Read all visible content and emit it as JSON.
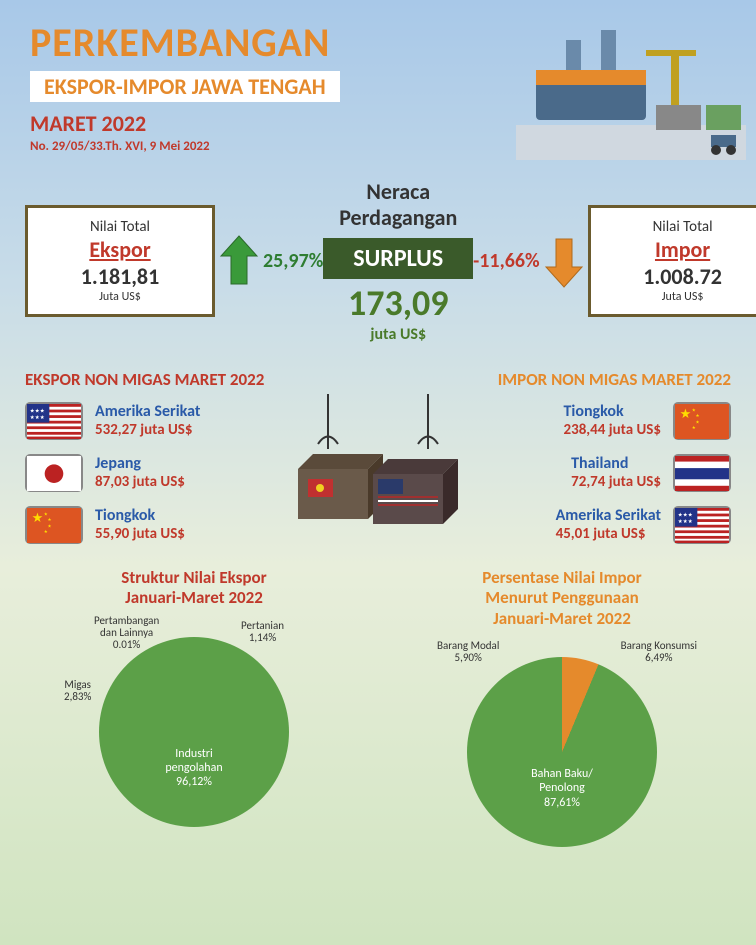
{
  "header": {
    "title_main": "PERKEMBANGAN",
    "title_sub": "EKSPOR-IMPOR JAWA TENGAH",
    "period": "MARET 2022",
    "pub_no": "No. 29/05/33.Th. XVI, 9 Mei 2022"
  },
  "export_box": {
    "label": "Nilai Total",
    "name": "Ekspor",
    "value": "1.181,81",
    "unit": "Juta US$",
    "pct": "25,97%",
    "direction": "up",
    "arrow_color": "#3a9a3a"
  },
  "import_box": {
    "label": "Nilai Total",
    "name": "Impor",
    "value": "1.008.72",
    "unit": "Juta US$",
    "pct": "-11,66%",
    "direction": "down",
    "arrow_color": "#e58a2c"
  },
  "balance": {
    "title1": "Neraca",
    "title2": "Perdagangan",
    "surplus_label": "SURPLUS",
    "value": "173,09",
    "unit": "juta US$"
  },
  "ekspor_non_migas": {
    "title": "EKSPOR NON MIGAS MARET 2022",
    "rows": [
      {
        "country": "Amerika Serikat",
        "value": "532,27 juta US$",
        "flag": "us"
      },
      {
        "country": "Jepang",
        "value": "87,03 juta US$",
        "flag": "jp"
      },
      {
        "country": "Tiongkok",
        "value": "55,90 juta US$",
        "flag": "cn"
      }
    ]
  },
  "impor_non_migas": {
    "title": "IMPOR NON MIGAS MARET 2022",
    "rows": [
      {
        "country": "Tiongkok",
        "value": "238,44 juta US$",
        "flag": "cn"
      },
      {
        "country": "Thailand",
        "value": "72,74 juta US$",
        "flag": "th"
      },
      {
        "country": "Amerika Serikat",
        "value": "45,01 juta US$",
        "flag": "us"
      }
    ]
  },
  "pie_ekspor": {
    "title": "Struktur Nilai Ekspor\nJanuari-Maret 2022",
    "slices": [
      {
        "label": "Industri pengolahan",
        "pct": 96.12,
        "color": "#5ca048",
        "label_text": "Industri\npengolahan\n96,12%"
      },
      {
        "label": "Migas",
        "pct": 2.83,
        "color": "#2a5aa8",
        "label_text": "Migas\n2,83%"
      },
      {
        "label": "Pertanian",
        "pct": 1.14,
        "color": "#e58a2c",
        "label_text": "Pertanian\n1,14%"
      },
      {
        "label": "Pertambangan dan Lainnya",
        "pct": 0.01,
        "color": "#888",
        "label_text": "Pertambangan\ndan Lainnya\n0.01%"
      }
    ]
  },
  "pie_impor": {
    "title": "Persentase Nilai Impor\nMenurut Penggunaan\nJanuari-Maret 2022",
    "slices": [
      {
        "label": "Bahan Baku/Penolong",
        "pct": 87.61,
        "color": "#5ca048",
        "label_text": "Bahan Baku/\nPenolong\n87,61%"
      },
      {
        "label": "Barang Modal",
        "pct": 5.9,
        "color": "#2a5aa8",
        "label_text": "Barang Modal\n5,90%"
      },
      {
        "label": "Barang Konsumsi",
        "pct": 6.49,
        "color": "#e58a2c",
        "label_text": "Barang Konsumsi\n6,49%"
      }
    ]
  },
  "colors": {
    "title_orange": "#e58a2c",
    "red": "#c0392b",
    "green": "#4a7a2a",
    "dark_green": "#3a5a2a",
    "blue": "#2a5aa8"
  }
}
